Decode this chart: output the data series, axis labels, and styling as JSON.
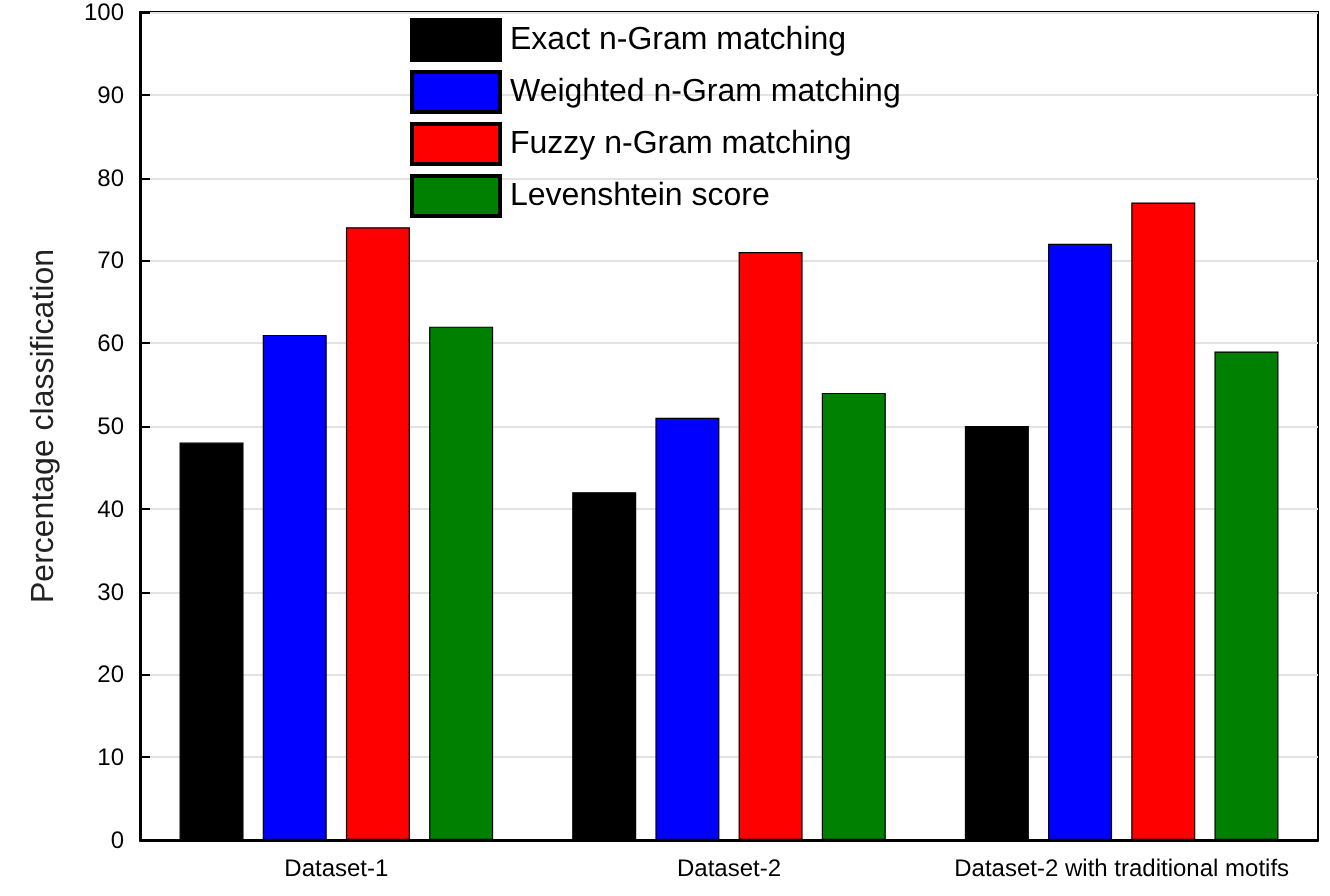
{
  "chart_data": {
    "type": "bar",
    "ylabel": "Percentage classification",
    "categories": [
      "Dataset-1",
      "Dataset-2",
      "Dataset-2 with traditional motifs"
    ],
    "series": [
      {
        "name": "Exact n-Gram matching",
        "color": "#000000",
        "values": [
          48,
          42,
          50
        ]
      },
      {
        "name": "Weighted n-Gram matching",
        "color": "#0000ff",
        "values": [
          61,
          51,
          72
        ]
      },
      {
        "name": "Fuzzy n-Gram matching",
        "color": "#ff0000",
        "values": [
          74,
          71,
          77
        ]
      },
      {
        "name": "Levenshtein score",
        "color": "#008000",
        "values": [
          62,
          54,
          59
        ]
      }
    ],
    "ylim": [
      0,
      100
    ],
    "yticks": [
      0,
      10,
      20,
      30,
      40,
      50,
      60,
      70,
      80,
      90,
      100
    ],
    "grid": "y",
    "legend": "top"
  }
}
